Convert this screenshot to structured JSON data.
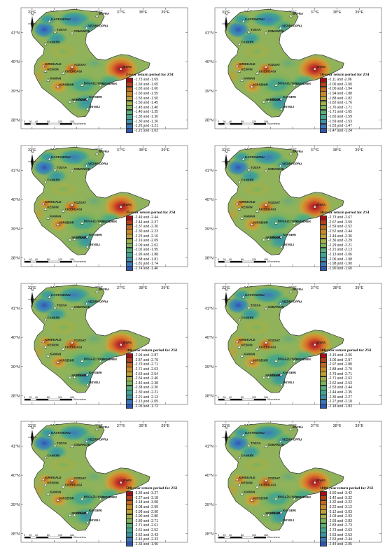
{
  "map": {
    "lon_labels": [
      "33°E",
      "34°E",
      "35°E",
      "36°E",
      "37°E",
      "38°E",
      "39°E"
    ],
    "lat_labels": [
      "41°N",
      "40°N",
      "39°N",
      "38°N"
    ],
    "north_label": "N",
    "scale_labels": [
      "0",
      "20",
      "40",
      "80",
      "120",
      "160"
    ],
    "scale_unit": "Kilometers",
    "stations": [
      {
        "name": "KASTAMONU",
        "lon": 33.78,
        "lat": 41.38
      },
      {
        "name": "BAFRA",
        "lon": 35.92,
        "lat": 41.57
      },
      {
        "name": "TOSYA",
        "lon": 34.03,
        "lat": 41.02
      },
      {
        "name": "OSMANCIK",
        "lon": 34.8,
        "lat": 40.98
      },
      {
        "name": "VEZIRKOPRU",
        "lon": 35.45,
        "lat": 41.15
      },
      {
        "name": "CANKIRI",
        "lon": 33.6,
        "lat": 40.6
      },
      {
        "name": "KIRIKKALE",
        "lon": 33.5,
        "lat": 39.85
      },
      {
        "name": "KESKIN",
        "lon": 33.6,
        "lat": 39.67
      },
      {
        "name": "YOZGAT",
        "lon": 34.8,
        "lat": 39.82
      },
      {
        "name": "CICEKDAGI",
        "lon": 34.4,
        "lat": 39.6
      },
      {
        "name": "SIVAS",
        "lon": 37.0,
        "lat": 39.75
      },
      {
        "name": "KAMAN",
        "lon": 33.72,
        "lat": 39.36
      },
      {
        "name": "KIRSEHIR",
        "lon": 34.16,
        "lat": 39.14
      },
      {
        "name": "BOGAZLIYAN",
        "lon": 35.25,
        "lat": 39.19
      },
      {
        "name": "GEMEREK",
        "lon": 36.07,
        "lat": 39.18
      },
      {
        "name": "NEVSEHIR",
        "lon": 34.7,
        "lat": 38.62
      },
      {
        "name": "URGUP",
        "lon": 34.91,
        "lat": 38.63
      },
      {
        "name": "KAYSERI",
        "lon": 35.48,
        "lat": 38.72
      },
      {
        "name": "DEVELI",
        "lon": 35.49,
        "lat": 38.38
      }
    ]
  },
  "legend_colors": [
    "#a50f15",
    "#b5401a",
    "#c06a22",
    "#c58a2c",
    "#bba23a",
    "#9fb04c",
    "#7cb35e",
    "#5aae78",
    "#45a48f",
    "#3e92a6",
    "#3b78ba",
    "#2f55b0"
  ],
  "panels": [
    {
      "title": "2-year return period for ZSI",
      "ranges": [
        "-1.73 and -1.69",
        "-1.69 and -1.65",
        "-1.65 and -1.60",
        "-1.60 and -1.55",
        "-1.55 and -1.50",
        "-1.50 and -1.45",
        "-1.45 and -1.40",
        "-1.40 and -1.35",
        "-1.35 and -1.30",
        "-1.30 and -1.26",
        "-1.26 and -1.21",
        "-1.21 and -1.02"
      ]
    },
    {
      "title": "10-year return period for ZSI",
      "ranges": [
        "-2.11 and -2.06",
        "-2.06 and -2.00",
        "-2.00 and -1.94",
        "-1.94 and -1.88",
        "-1.88 and -1.82",
        "-1.82 and -1.76",
        "-1.76 and -1.71",
        "-1.71 and -1.65",
        "-1.65 and -1.59",
        "-1.59 and -1.53",
        "-1.53 and -1.47",
        "-1.47 and -1.24"
      ]
    },
    {
      "title": "25-year return period for ZSI",
      "ranges": [
        "-2.49 and -2.44",
        "-2.44 and -2.37",
        "-2.37 and -2.30",
        "-2.30 and -2.23",
        "-2.23 and -2.16",
        "-2.16 and -2.09",
        "-2.09 and -2.02",
        "-2.02 and -1.95",
        "-1.95 and -1.88",
        "-1.88 and -1.81",
        "-1.81 and -1.74",
        "-1.74 and -1.46"
      ]
    },
    {
      "title": "50-year return period for ZSI",
      "ranges": [
        "-2.73 and -2.67",
        "-2.67 and -2.59",
        "-2.59 and -2.52",
        "-2.52 and -2.44",
        "-2.44 and -2.36",
        "-2.36 and -2.29",
        "-2.29 and -2.21",
        "-2.21 and -2.13",
        "-2.13 and -2.06",
        "-2.06 and -1.98",
        "-1.98 and -1.90",
        "-1.90 and -1.60"
      ]
    },
    {
      "title": "100-year return period for ZSI",
      "ranges": [
        "-2.94 and -2.87",
        "-2.87 and -2.79",
        "-2.79 and -2.71",
        "-2.71 and -2.63",
        "-2.63 and -2.54",
        "-2.54 and -2.46",
        "-2.46 and -2.38",
        "-2.38 and -2.30",
        "-2.30 and -2.21",
        "-2.21 and -2.13",
        "-2.13 and -2.05",
        "-2.05 and -1.72"
      ]
    },
    {
      "title": "200-year return period for ZSI",
      "ranges": [
        "-3.15 and -3.06",
        "-3.06 and -2.97",
        "-2.97 and -2.88",
        "-2.88 and -2.79",
        "-2.79 and -2.71",
        "-2.71 and -2.62",
        "-2.62 and -2.53",
        "-2.53 and -2.44",
        "-2.44 and -2.35",
        "-2.35 and -2.27",
        "-2.27 and -2.18",
        "-2.18 and -1.83"
      ]
    },
    {
      "title": "500-year return period for ZSI",
      "ranges": [
        "-3.35 and -3.27",
        "-3.27 and -3.18",
        "-3.18 and -3.08",
        "-3.08 and -2.99",
        "-2.99 and -2.90",
        "-2.90 and -2.80",
        "-2.80 and -2.71",
        "-2.71 and -2.61",
        "-2.61 and -2.52",
        "-2.52 and -2.43",
        "-2.43 and -2.33",
        "-2.33 and -1.96"
      ]
    },
    {
      "title": "1000-year return period for ZSI",
      "ranges": [
        "-3.50 and -3.42",
        "-3.42 and -3.32",
        "-3.32 and -3.22",
        "-3.22 and -3.12",
        "-3.12 and -3.03",
        "-3.03 and -2.93",
        "-2.93 and -2.83",
        "-2.83 and -2.73",
        "-2.73 and -2.63",
        "-2.63 and -2.53",
        "-2.53 and -2.44",
        "-2.44 and -2.05"
      ]
    }
  ]
}
